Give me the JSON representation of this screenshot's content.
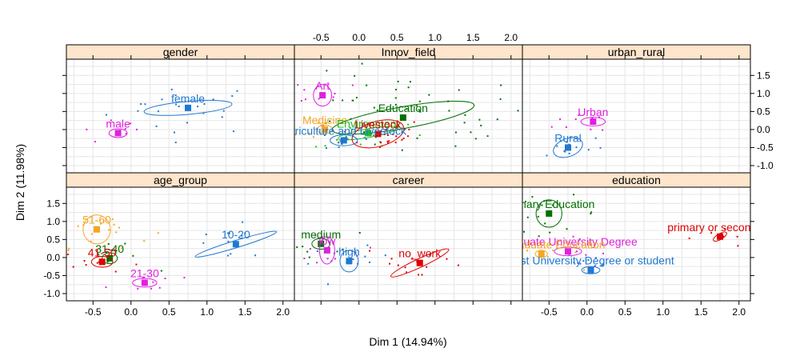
{
  "chart_data": {
    "type": "scatter",
    "xlabel": "Dim 1 (14.94%)",
    "ylabel": "Dim 2 (11.98%)",
    "xlim": [
      -0.85,
      2.15
    ],
    "ylim": [
      -1.2,
      1.95
    ],
    "x_ticks": [
      "-0.5",
      "0.0",
      "0.5",
      "1.0",
      "1.5",
      "2.0"
    ],
    "y_ticks": [
      "-1.0",
      "-0.5",
      "0.0",
      "0.5",
      "1.0",
      "1.5"
    ],
    "grid": true,
    "panels": [
      {
        "title": "gender",
        "categories": [
          {
            "label": "female",
            "color": "#1f78d1",
            "x": 0.75,
            "y": 0.6,
            "ellipse": {
              "rx": 0.58,
              "ry": 0.18,
              "angle": -5
            }
          },
          {
            "label": "male",
            "color": "#e020e0",
            "x": -0.17,
            "y": -0.1,
            "ellipse": {
              "rx": 0.12,
              "ry": 0.12,
              "angle": 0
            }
          }
        ]
      },
      {
        "title": "Innov_field",
        "categories": [
          {
            "label": "Art",
            "color": "#e020e0",
            "x": -0.48,
            "y": 0.95,
            "ellipse": {
              "rx": 0.12,
              "ry": 0.3,
              "angle": 0
            }
          },
          {
            "label": "Medicine",
            "color": "#f5a623",
            "x": -0.45,
            "y": 0.0,
            "ellipse": {
              "rx": 0.1,
              "ry": 0.12,
              "angle": 0
            }
          },
          {
            "label": "Education",
            "color": "#007000",
            "x": 0.58,
            "y": 0.33,
            "ellipse": {
              "rx": 0.95,
              "ry": 0.3,
              "angle": -10
            }
          },
          {
            "label": "Environment",
            "color": "#22bb22",
            "x": 0.12,
            "y": -0.1,
            "ellipse": {
              "rx": 0.4,
              "ry": 0.12,
              "angle": -10
            }
          },
          {
            "label": "Livestock",
            "color": "#e00000",
            "x": 0.25,
            "y": -0.12,
            "ellipse": {
              "rx": 0.35,
              "ry": 0.35,
              "angle": -15
            }
          },
          {
            "label": "Agriculture and Livestock",
            "color": "#1f78d1",
            "x": -0.2,
            "y": -0.3,
            "ellipse": {
              "rx": 0.18,
              "ry": 0.15,
              "angle": 0
            }
          }
        ]
      },
      {
        "title": "urban_rural",
        "categories": [
          {
            "label": "Urban",
            "color": "#e020e0",
            "x": 0.08,
            "y": 0.22,
            "ellipse": {
              "rx": 0.16,
              "ry": 0.12,
              "angle": 0
            }
          },
          {
            "label": "Rural",
            "color": "#1f78d1",
            "x": -0.25,
            "y": -0.5,
            "ellipse": {
              "rx": 0.2,
              "ry": 0.25,
              "angle": -20
            }
          }
        ]
      },
      {
        "title": "age_group",
        "categories": [
          {
            "label": "51-60",
            "color": "#f5a623",
            "x": -0.45,
            "y": 0.78,
            "ellipse": {
              "rx": 0.18,
              "ry": 0.4,
              "angle": -5
            }
          },
          {
            "label": "31-40",
            "color": "#007000",
            "x": -0.28,
            "y": -0.02,
            "ellipse": {
              "rx": 0.1,
              "ry": 0.15,
              "angle": 0
            }
          },
          {
            "label": "41-50",
            "color": "#e00000",
            "x": -0.38,
            "y": -0.12,
            "ellipse": {
              "rx": 0.14,
              "ry": 0.15,
              "angle": 0
            }
          },
          {
            "label": "21-30",
            "color": "#e020e0",
            "x": 0.18,
            "y": -0.7,
            "ellipse": {
              "rx": 0.16,
              "ry": 0.12,
              "angle": 0
            }
          },
          {
            "label": "10-20",
            "color": "#1f78d1",
            "x": 1.38,
            "y": 0.37,
            "ellipse": {
              "rx": 0.56,
              "ry": 0.1,
              "angle": -17
            }
          }
        ]
      },
      {
        "title": "career",
        "categories": [
          {
            "label": "medium",
            "color": "#007000",
            "x": -0.5,
            "y": 0.38,
            "ellipse": {
              "rx": 0.12,
              "ry": 0.15,
              "angle": 0
            }
          },
          {
            "label": "low",
            "color": "#e020e0",
            "x": -0.42,
            "y": 0.2,
            "ellipse": {
              "rx": 0.1,
              "ry": 0.38,
              "angle": 0
            }
          },
          {
            "label": "high",
            "color": "#1f78d1",
            "x": -0.13,
            "y": -0.1,
            "ellipse": {
              "rx": 0.12,
              "ry": 0.3,
              "angle": 0
            }
          },
          {
            "label": "no_work",
            "color": "#e00000",
            "x": 0.8,
            "y": -0.15,
            "ellipse": {
              "rx": 0.42,
              "ry": 0.12,
              "angle": -25
            }
          }
        ]
      },
      {
        "title": "education",
        "categories": [
          {
            "label": "Primary Education",
            "color": "#007000",
            "x": -0.5,
            "y": 1.22,
            "ellipse": {
              "rx": 0.17,
              "ry": 0.38,
              "angle": 0
            }
          },
          {
            "label": "primary or secondary",
            "color": "#e00000",
            "x": 1.75,
            "y": 0.58,
            "ellipse": {
              "rx": 0.1,
              "ry": 0.08,
              "angle": -30
            }
          },
          {
            "label": "Graduate University Degree",
            "color": "#e020e0",
            "x": -0.25,
            "y": 0.17,
            "ellipse": {
              "rx": 0.18,
              "ry": 0.12,
              "angle": 0
            }
          },
          {
            "label": "Undergraduate Education",
            "color": "#f5a623",
            "x": -0.6,
            "y": 0.1,
            "ellipse": {
              "rx": 0.08,
              "ry": 0.1,
              "angle": 0
            }
          },
          {
            "label": "First University Degree or student",
            "color": "#1f78d1",
            "x": 0.05,
            "y": -0.35,
            "ellipse": {
              "rx": 0.12,
              "ry": 0.1,
              "angle": 0
            }
          }
        ]
      }
    ]
  }
}
